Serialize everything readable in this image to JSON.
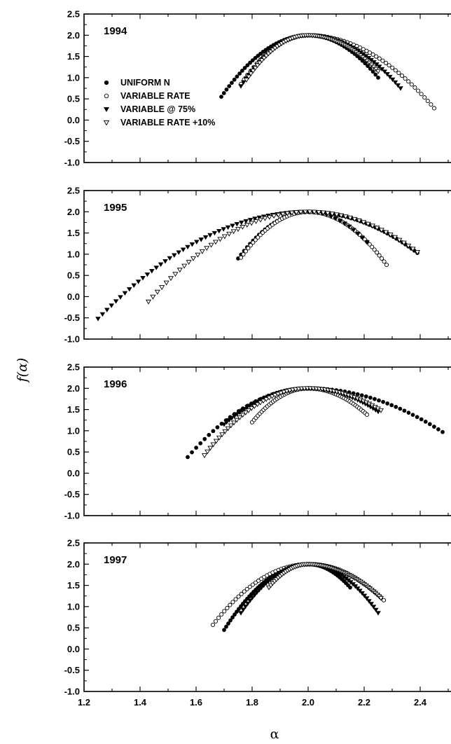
{
  "chart_data": {
    "type": "scatter",
    "xlabel": "α",
    "ylabel": "f(α)",
    "xlim": [
      1.2,
      2.5
    ],
    "ylim": [
      -1.0,
      2.5
    ],
    "x_ticks": [
      "1.2",
      "1.4",
      "1.6",
      "1.8",
      "2.0",
      "2.2",
      "2.4"
    ],
    "y_ticks": [
      "2.5",
      "2.0",
      "1.5",
      "1.0",
      "0.5",
      "0.0",
      "-0.5",
      "-1.0"
    ],
    "legend_placement": "left, inside top panel",
    "legend": [
      {
        "label": "UNIFORM N",
        "marker": "filled-circle"
      },
      {
        "label": "VARIABLE RATE",
        "marker": "open-circle"
      },
      {
        "label": "VARIABLE @ 75%",
        "marker": "filled-triangle-down"
      },
      {
        "label": "VARIABLE RATE +10%",
        "marker": "open-triangle-down"
      }
    ],
    "panels": [
      {
        "title": "1994",
        "series": [
          {
            "name": "UNIFORM N",
            "alpha_min": 1.69,
            "f_min_left": 0.55,
            "alpha_max": 2.25,
            "f_min_right": 1.0
          },
          {
            "name": "VARIABLE RATE",
            "alpha_min": 1.76,
            "f_min_left": 0.85,
            "alpha_max": 2.45,
            "f_min_right": 0.28
          },
          {
            "name": "VARIABLE @ 75%",
            "alpha_min": 1.76,
            "f_min_left": 0.8,
            "alpha_max": 2.33,
            "f_min_right": 0.75
          },
          {
            "name": "VARIABLE RATE +10%",
            "alpha_min": 1.78,
            "f_min_left": 0.95,
            "alpha_max": 2.25,
            "f_min_right": 1.15
          }
        ]
      },
      {
        "title": "1995",
        "series": [
          {
            "name": "UNIFORM N",
            "alpha_min": 1.75,
            "f_min_left": 0.9,
            "alpha_max": 2.39,
            "f_min_right": 1.03
          },
          {
            "name": "VARIABLE RATE",
            "alpha_min": 1.76,
            "f_min_left": 0.92,
            "alpha_max": 2.28,
            "f_min_right": 0.75
          },
          {
            "name": "VARIABLE @ 75%",
            "alpha_min": 1.25,
            "f_min_left": -0.52,
            "alpha_max": 2.21,
            "f_min_right": 1.28
          },
          {
            "name": "VARIABLE RATE +10%",
            "alpha_min": 1.43,
            "f_min_left": -0.12,
            "alpha_max": 2.39,
            "f_min_right": 1.05
          }
        ]
      },
      {
        "title": "1996",
        "series": [
          {
            "name": "UNIFORM N",
            "alpha_min": 1.57,
            "f_min_left": 0.38,
            "alpha_max": 2.48,
            "f_min_right": 0.97
          },
          {
            "name": "VARIABLE RATE",
            "alpha_min": 1.8,
            "f_min_left": 1.2,
            "alpha_max": 2.21,
            "f_min_right": 1.38
          },
          {
            "name": "VARIABLE @ 75%",
            "alpha_min": 1.7,
            "f_min_left": 1.15,
            "alpha_max": 2.25,
            "f_min_right": 1.45
          },
          {
            "name": "VARIABLE RATE +10%",
            "alpha_min": 1.63,
            "f_min_left": 0.42,
            "alpha_max": 2.26,
            "f_min_right": 1.48
          }
        ]
      },
      {
        "title": "1997",
        "series": [
          {
            "name": "UNIFORM N",
            "alpha_min": 1.7,
            "f_min_left": 0.45,
            "alpha_max": 2.15,
            "f_min_right": 1.45
          },
          {
            "name": "VARIABLE RATE",
            "alpha_min": 1.66,
            "f_min_left": 0.57,
            "alpha_max": 2.27,
            "f_min_right": 1.15
          },
          {
            "name": "VARIABLE @ 75%",
            "alpha_min": 1.76,
            "f_min_left": 0.85,
            "alpha_max": 2.25,
            "f_min_right": 0.85
          },
          {
            "name": "VARIABLE RATE +10%",
            "alpha_min": 1.86,
            "f_min_left": 1.45,
            "alpha_max": 2.26,
            "f_min_right": 1.2
          }
        ]
      }
    ]
  }
}
